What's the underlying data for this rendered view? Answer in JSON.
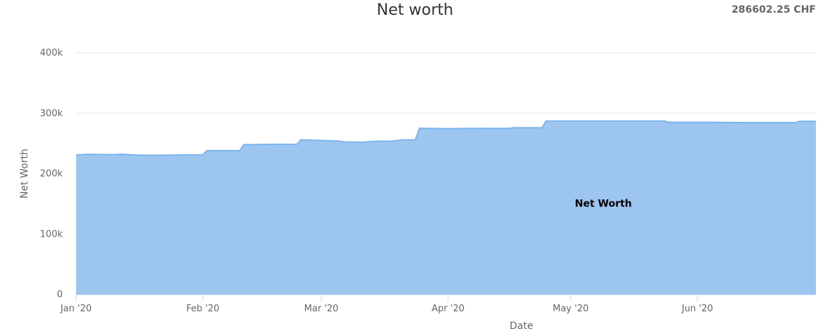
{
  "header": {
    "title": "Net worth",
    "total": "286602.25 CHF"
  },
  "chart_data": {
    "type": "area",
    "title": "Net worth",
    "xlabel": "Date",
    "ylabel": "Net Worth",
    "ylim": [
      0,
      400000
    ],
    "xlim": [
      "2020-01-01",
      "2020-06-30"
    ],
    "grid": true,
    "legend": "none",
    "color": "#9cc5f0",
    "line_color": "#7cb5ec",
    "y_ticks": [
      {
        "value": 0,
        "label": "0"
      },
      {
        "value": 100000,
        "label": "100k"
      },
      {
        "value": 200000,
        "label": "200k"
      },
      {
        "value": 300000,
        "label": "300k"
      },
      {
        "value": 400000,
        "label": "400k"
      }
    ],
    "x_ticks": [
      {
        "value": "2020-01-01",
        "label": "Jan '20"
      },
      {
        "value": "2020-02-01",
        "label": "Feb '20"
      },
      {
        "value": "2020-03-01",
        "label": "Mar '20"
      },
      {
        "value": "2020-04-01",
        "label": "Apr '20"
      },
      {
        "value": "2020-05-01",
        "label": "May '20"
      },
      {
        "value": "2020-06-01",
        "label": "Jun '20"
      }
    ],
    "series": [
      {
        "name": "Net Worth",
        "points": [
          {
            "x": "2020-01-01",
            "y": 231000
          },
          {
            "x": "2020-01-04",
            "y": 232000
          },
          {
            "x": "2020-01-10",
            "y": 231500
          },
          {
            "x": "2020-01-12",
            "y": 232000
          },
          {
            "x": "2020-01-17",
            "y": 230500
          },
          {
            "x": "2020-01-22",
            "y": 230500
          },
          {
            "x": "2020-01-27",
            "y": 231000
          },
          {
            "x": "2020-01-30",
            "y": 231000
          },
          {
            "x": "2020-02-01",
            "y": 231000
          },
          {
            "x": "2020-02-02",
            "y": 238000
          },
          {
            "x": "2020-02-06",
            "y": 238000
          },
          {
            "x": "2020-02-10",
            "y": 238000
          },
          {
            "x": "2020-02-11",
            "y": 248000
          },
          {
            "x": "2020-02-18",
            "y": 248500
          },
          {
            "x": "2020-02-24",
            "y": 248500
          },
          {
            "x": "2020-02-25",
            "y": 256000
          },
          {
            "x": "2020-03-01",
            "y": 255000
          },
          {
            "x": "2020-03-05",
            "y": 254000
          },
          {
            "x": "2020-03-07",
            "y": 252500
          },
          {
            "x": "2020-03-11",
            "y": 252000
          },
          {
            "x": "2020-03-15",
            "y": 254000
          },
          {
            "x": "2020-03-18",
            "y": 253500
          },
          {
            "x": "2020-03-21",
            "y": 256000
          },
          {
            "x": "2020-03-24",
            "y": 256000
          },
          {
            "x": "2020-03-25",
            "y": 275000
          },
          {
            "x": "2020-04-01",
            "y": 274500
          },
          {
            "x": "2020-04-08",
            "y": 275000
          },
          {
            "x": "2020-04-11",
            "y": 275000
          },
          {
            "x": "2020-04-16",
            "y": 275000
          },
          {
            "x": "2020-04-17",
            "y": 276000
          },
          {
            "x": "2020-04-24",
            "y": 276000
          },
          {
            "x": "2020-04-25",
            "y": 287000
          },
          {
            "x": "2020-05-10",
            "y": 287000
          },
          {
            "x": "2020-05-24",
            "y": 287000
          },
          {
            "x": "2020-05-25",
            "y": 285000
          },
          {
            "x": "2020-06-05",
            "y": 285000
          },
          {
            "x": "2020-06-10",
            "y": 284500
          },
          {
            "x": "2020-06-25",
            "y": 284500
          },
          {
            "x": "2020-06-26",
            "y": 286602.25
          },
          {
            "x": "2020-06-30",
            "y": 286602.25
          }
        ]
      }
    ],
    "annotations": [
      {
        "text": "Net Worth",
        "x": "2020-05-09",
        "y": 145000
      }
    ]
  }
}
